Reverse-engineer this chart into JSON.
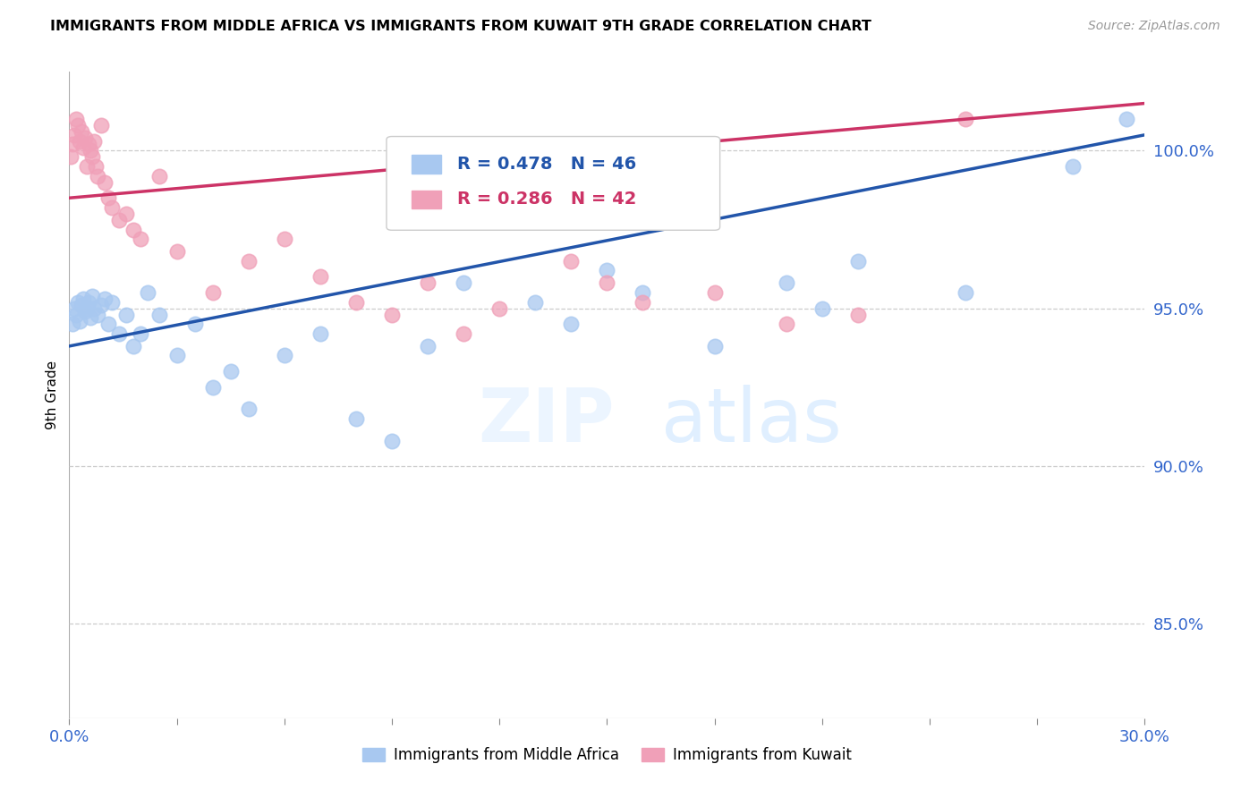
{
  "title": "IMMIGRANTS FROM MIDDLE AFRICA VS IMMIGRANTS FROM KUWAIT 9TH GRADE CORRELATION CHART",
  "source": "Source: ZipAtlas.com",
  "ylabel": "9th Grade",
  "right_yticks": [
    85.0,
    90.0,
    95.0,
    100.0
  ],
  "legend_blue_r": "R = 0.478",
  "legend_blue_n": "N = 46",
  "legend_pink_r": "R = 0.286",
  "legend_pink_n": "N = 42",
  "legend_blue_label": "Immigrants from Middle Africa",
  "legend_pink_label": "Immigrants from Kuwait",
  "blue_color": "#A8C8F0",
  "pink_color": "#F0A0B8",
  "trend_blue_color": "#2255AA",
  "trend_pink_color": "#CC3366",
  "xmin": 0.0,
  "xmax": 30.0,
  "ymin": 82.0,
  "ymax": 102.5,
  "blue_scatter_x": [
    0.1,
    0.15,
    0.2,
    0.25,
    0.3,
    0.35,
    0.4,
    0.45,
    0.5,
    0.55,
    0.6,
    0.65,
    0.7,
    0.8,
    0.9,
    1.0,
    1.1,
    1.2,
    1.4,
    1.6,
    1.8,
    2.0,
    2.2,
    2.5,
    3.0,
    3.5,
    4.0,
    4.5,
    5.0,
    6.0,
    7.0,
    8.0,
    9.0,
    10.0,
    11.0,
    13.0,
    14.0,
    15.0,
    16.0,
    18.0,
    20.0,
    21.0,
    22.0,
    25.0,
    28.0,
    29.5
  ],
  "blue_scatter_y": [
    94.5,
    95.0,
    94.8,
    95.2,
    94.6,
    95.1,
    95.3,
    94.9,
    95.0,
    95.2,
    94.7,
    95.4,
    95.0,
    94.8,
    95.1,
    95.3,
    94.5,
    95.2,
    94.2,
    94.8,
    93.8,
    94.2,
    95.5,
    94.8,
    93.5,
    94.5,
    92.5,
    93.0,
    91.8,
    93.5,
    94.2,
    91.5,
    90.8,
    93.8,
    95.8,
    95.2,
    94.5,
    96.2,
    95.5,
    93.8,
    95.8,
    95.0,
    96.5,
    95.5,
    99.5,
    101.0
  ],
  "pink_scatter_x": [
    0.05,
    0.1,
    0.15,
    0.2,
    0.25,
    0.3,
    0.35,
    0.4,
    0.45,
    0.5,
    0.55,
    0.6,
    0.65,
    0.7,
    0.75,
    0.8,
    0.9,
    1.0,
    1.1,
    1.2,
    1.4,
    1.6,
    1.8,
    2.0,
    2.5,
    3.0,
    4.0,
    5.0,
    6.0,
    7.0,
    8.0,
    9.0,
    10.0,
    11.0,
    12.0,
    14.0,
    15.0,
    16.0,
    18.0,
    20.0,
    22.0,
    25.0
  ],
  "pink_scatter_y": [
    99.8,
    100.2,
    100.5,
    101.0,
    100.8,
    100.3,
    100.6,
    100.1,
    100.4,
    99.5,
    100.2,
    100.0,
    99.8,
    100.3,
    99.5,
    99.2,
    100.8,
    99.0,
    98.5,
    98.2,
    97.8,
    98.0,
    97.5,
    97.2,
    99.2,
    96.8,
    95.5,
    96.5,
    97.2,
    96.0,
    95.2,
    94.8,
    95.8,
    94.2,
    95.0,
    96.5,
    95.8,
    95.2,
    95.5,
    94.5,
    94.8,
    101.0
  ],
  "blue_trend_x0": 0.0,
  "blue_trend_y0": 93.8,
  "blue_trend_x1": 30.0,
  "blue_trend_y1": 100.5,
  "pink_trend_x0": 0.0,
  "pink_trend_y0": 98.5,
  "pink_trend_x1": 30.0,
  "pink_trend_y1": 101.5
}
